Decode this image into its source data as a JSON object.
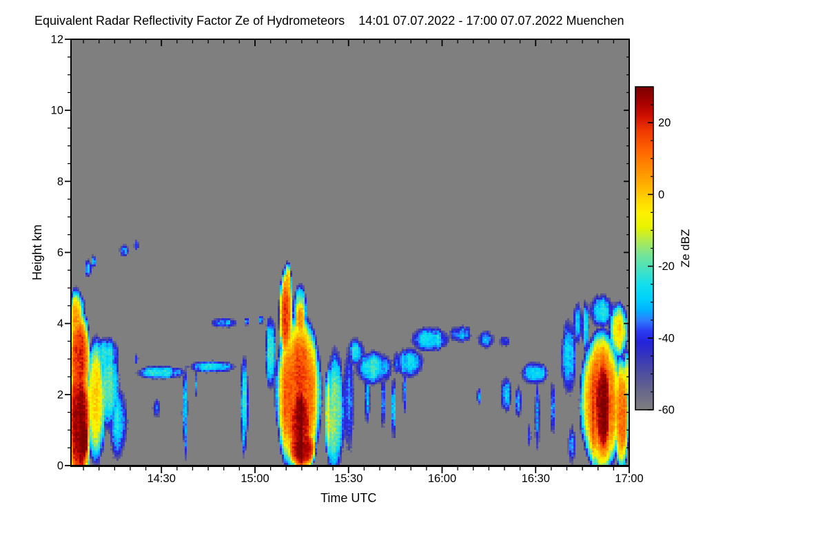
{
  "figure": {
    "title": "Equivalent Radar Reflectivity Factor Ze of Hydrometeors",
    "period": "14:01 07.07.2022 - 17:00 07.07.2022 Muenchen"
  },
  "axes": {
    "x": {
      "label": "Time UTC",
      "start_time": "14:01",
      "end_time": "17:00",
      "range_minutes": [
        1,
        180
      ],
      "major_ticks": [
        {
          "label": "14:30",
          "minutes": 30
        },
        {
          "label": "15:00",
          "minutes": 60
        },
        {
          "label": "15:30",
          "minutes": 90
        },
        {
          "label": "16:00",
          "minutes": 120
        },
        {
          "label": "16:30",
          "minutes": 150
        },
        {
          "label": "17:00",
          "minutes": 180
        }
      ],
      "minor_tick_step_minutes": 5
    },
    "y": {
      "label": "Height km",
      "range_km": [
        0,
        12
      ],
      "major_ticks": [
        {
          "label": "0",
          "km": 0
        },
        {
          "label": "2",
          "km": 2
        },
        {
          "label": "4",
          "km": 4
        },
        {
          "label": "6",
          "km": 6
        },
        {
          "label": "8",
          "km": 8
        },
        {
          "label": "10",
          "km": 10
        },
        {
          "label": "12",
          "km": 12
        }
      ],
      "minor_tick_step_km": 0.5
    }
  },
  "colorbar": {
    "label": "Ze dBZ",
    "range_dbz": [
      -60,
      30
    ],
    "major_ticks": [
      {
        "label": "20",
        "value": 20
      },
      {
        "label": "0",
        "value": 0
      },
      {
        "label": "-20",
        "value": -20
      },
      {
        "label": "-40",
        "value": -40
      },
      {
        "label": "-60",
        "value": -60
      }
    ],
    "minor_tick_step_dbz": 5,
    "stops": [
      {
        "v": -60,
        "c": "#7f7f7f"
      },
      {
        "v": -55,
        "c": "#69698a"
      },
      {
        "v": -50,
        "c": "#50509e"
      },
      {
        "v": -45,
        "c": "#3636bc"
      },
      {
        "v": -41,
        "c": "#2424dc"
      },
      {
        "v": -38,
        "c": "#2b3bf2"
      },
      {
        "v": -35,
        "c": "#2f7dff"
      },
      {
        "v": -32,
        "c": "#00b4ff"
      },
      {
        "v": -29,
        "c": "#00d2fc"
      },
      {
        "v": -25,
        "c": "#14dfee"
      },
      {
        "v": -21,
        "c": "#44e2c4"
      },
      {
        "v": -17,
        "c": "#72e49c"
      },
      {
        "v": -13,
        "c": "#aeea55"
      },
      {
        "v": -9,
        "c": "#e8f400"
      },
      {
        "v": -5,
        "c": "#fff200"
      },
      {
        "v": -1,
        "c": "#ffd300"
      },
      {
        "v": 3,
        "c": "#ffae00"
      },
      {
        "v": 8,
        "c": "#ff8800"
      },
      {
        "v": 13,
        "c": "#ff6000"
      },
      {
        "v": 18,
        "c": "#ef3800"
      },
      {
        "v": 22,
        "c": "#cf1000"
      },
      {
        "v": 26,
        "c": "#a50000"
      },
      {
        "v": 30,
        "c": "#7c0000"
      }
    ]
  },
  "colors": {
    "page_background": "#ffffff",
    "plot_background_no_echo": "#7f7f7f",
    "frame": "#000000",
    "text": "#000000"
  },
  "chart_data": {
    "type": "heatmap",
    "title": "Equivalent Radar Reflectivity Factor Ze of Hydrometeors",
    "site": "Muenchen",
    "time_start": "14:01 07.07.2022",
    "time_end": "17:00 07.07.2022",
    "xlabel": "Time UTC",
    "ylabel": "Height km",
    "value_label": "Ze dBZ",
    "time_range_minutes": [
      1,
      180
    ],
    "height_range_km": [
      0,
      12
    ],
    "value_range_dbz": [
      -60,
      30
    ],
    "background_is_no_echo": true,
    "threshold_dbz": -55,
    "edge_dbz": -68,
    "texture_noise_dbz": {
      "broad": 10,
      "streak": 12,
      "speckle": 7
    },
    "episodes": [
      {
        "time": "14:01-14:20",
        "desc": "deep shower echo 0-4.7 km, core > 25 dBZ near surface"
      },
      {
        "time": "14:05-14:25",
        "desc": "weak ice cloud specks -30 to -38 dBZ near 5.5-6.3 km"
      },
      {
        "time": "14:20-15:00",
        "desc": "thin cloud layer ~2.6-2.9 km with virga streaks to 0.4 km"
      },
      {
        "time": "15:05-15:31",
        "desc": "main shower, plume to 5.5 km, core 25-30 dBZ 0-2.6 km"
      },
      {
        "time": "15:32-16:20",
        "desc": "broken cloud layer 2.3-3.9 km, -22 to -36 dBZ, rising tops"
      },
      {
        "time": "16:18-16:38",
        "desc": "scattered weak cloud 0.5-2.9 km with thin virga"
      },
      {
        "time": "16:38-17:00",
        "desc": "shower to 4.8 km, core ~28 dBZ 0-3 km, continues past right edge"
      }
    ],
    "feature_format": [
      "t_center_min_after_1400",
      "h_center_km",
      "t_halfwidth_min",
      "h_halfwidth_km",
      "peak_dbz",
      "edge_sharpness"
    ],
    "echo_features": [
      [
        3.5,
        1.2,
        4.5,
        2.2,
        26,
        2.0
      ],
      [
        3.5,
        3.0,
        4.0,
        1.6,
        18,
        1.8
      ],
      [
        2.5,
        4.0,
        3.0,
        1.1,
        4,
        1.6
      ],
      [
        3.0,
        4.45,
        2.8,
        0.5,
        -20,
        1.2
      ],
      [
        5.0,
        0.8,
        2.2,
        1.0,
        29,
        2.0
      ],
      [
        9.0,
        1.8,
        3.5,
        2.0,
        -2,
        1.6
      ],
      [
        13,
        2.2,
        4.0,
        1.4,
        -20,
        1.4
      ],
      [
        16,
        1.2,
        3.5,
        1.2,
        -30,
        1.2
      ],
      [
        12,
        3.1,
        5.0,
        0.6,
        -25,
        1.3
      ],
      [
        6.5,
        5.55,
        1.3,
        0.28,
        -35,
        1.1
      ],
      [
        8.2,
        5.75,
        0.8,
        0.22,
        -30,
        1.1
      ],
      [
        18,
        6.05,
        1.8,
        0.22,
        -30,
        1.1
      ],
      [
        22,
        6.2,
        1.0,
        0.18,
        -33,
        1.1
      ],
      [
        22,
        3.0,
        0.7,
        0.2,
        -38,
        1.1
      ],
      [
        28.5,
        1.6,
        1.5,
        0.35,
        -36,
        1.1
      ],
      [
        30,
        2.62,
        9,
        0.22,
        -24,
        1.4
      ],
      [
        46,
        2.78,
        9,
        0.2,
        -24,
        1.4
      ],
      [
        37.5,
        1.6,
        1.2,
        1.3,
        -28,
        1.2
      ],
      [
        37.8,
        0.8,
        0.8,
        0.9,
        -30,
        1.2
      ],
      [
        41,
        2.3,
        0.7,
        0.5,
        -33,
        1.1
      ],
      [
        56.5,
        1.8,
        1.6,
        1.5,
        -22,
        1.3
      ],
      [
        56.5,
        0.9,
        1.0,
        0.8,
        -28,
        1.2
      ],
      [
        50,
        4.02,
        5,
        0.18,
        -30,
        1.2
      ],
      [
        57.5,
        4.05,
        1.2,
        0.15,
        -33,
        1.1
      ],
      [
        62,
        4.1,
        1.2,
        0.15,
        -34,
        1.1
      ],
      [
        65,
        3.2,
        2.0,
        1.2,
        -22,
        1.3
      ],
      [
        70,
        4.2,
        2.6,
        1.5,
        15,
        1.8
      ],
      [
        70.5,
        5.1,
        1.5,
        0.7,
        2,
        1.5
      ],
      [
        74.5,
        4.3,
        2.5,
        0.9,
        -10,
        1.3
      ],
      [
        74.5,
        4.1,
        2.0,
        0.75,
        8,
        1.5
      ],
      [
        74,
        2.0,
        8,
        2.5,
        16,
        2.2
      ],
      [
        74.5,
        1.2,
        4.5,
        1.4,
        27,
        2.4
      ],
      [
        75,
        0.5,
        5,
        0.7,
        29,
        2.4
      ],
      [
        85.5,
        1.5,
        3.5,
        2.0,
        -14,
        1.5
      ],
      [
        83.5,
        1.5,
        1.2,
        1.5,
        -4,
        1.5
      ],
      [
        90,
        1.8,
        2.0,
        1.9,
        -30,
        1.2
      ],
      [
        92.5,
        3.2,
        3.0,
        0.45,
        -26,
        1.3
      ],
      [
        98,
        2.75,
        7,
        0.55,
        -24,
        1.4
      ],
      [
        109,
        2.9,
        6,
        0.5,
        -26,
        1.4
      ],
      [
        96,
        1.9,
        1.1,
        0.9,
        -30,
        1.2
      ],
      [
        101,
        1.8,
        1.0,
        1.0,
        -28,
        1.2
      ],
      [
        104.5,
        1.6,
        0.9,
        1.1,
        -26,
        1.2
      ],
      [
        108,
        2.1,
        0.8,
        0.8,
        -32,
        1.2
      ],
      [
        116,
        3.55,
        7,
        0.42,
        -25,
        1.4
      ],
      [
        126,
        3.7,
        4,
        0.3,
        -29,
        1.2
      ],
      [
        134,
        3.55,
        3.5,
        0.3,
        -32,
        1.2
      ],
      [
        140,
        3.5,
        2.0,
        0.2,
        -36,
        1.1
      ],
      [
        131.8,
        1.95,
        0.8,
        0.3,
        -30,
        1.1
      ],
      [
        140.5,
        2.0,
        2.2,
        0.6,
        -30,
        1.2
      ],
      [
        144.5,
        1.8,
        1.5,
        0.55,
        -29,
        1.2
      ],
      [
        149.5,
        2.6,
        5.0,
        0.38,
        -22,
        1.4
      ],
      [
        150.5,
        1.4,
        1.0,
        1.3,
        -29,
        1.2
      ],
      [
        155.5,
        1.6,
        1.1,
        0.9,
        -34,
        1.2
      ],
      [
        148,
        0.85,
        0.8,
        0.45,
        -36,
        1.1
      ],
      [
        160.5,
        3.0,
        2.8,
        1.3,
        -24,
        1.4
      ],
      [
        163.5,
        4.0,
        1.6,
        0.7,
        -27,
        1.2
      ],
      [
        171,
        4.35,
        5.5,
        0.55,
        -26,
        1.3
      ],
      [
        171,
        1.8,
        7.5,
        2.2,
        14,
        2.2
      ],
      [
        171.5,
        1.7,
        3.6,
        1.7,
        27,
        2.4
      ],
      [
        176.5,
        3.8,
        3.5,
        0.9,
        0,
        1.5
      ],
      [
        177.5,
        1.5,
        2.8,
        1.8,
        10,
        1.8
      ],
      [
        179.3,
        2.5,
        1.2,
        0.9,
        -10,
        1.4
      ],
      [
        161.5,
        0.6,
        1.6,
        0.7,
        -30,
        1.1
      ],
      [
        166,
        3.9,
        1.3,
        0.9,
        -20,
        1.3
      ]
    ]
  }
}
